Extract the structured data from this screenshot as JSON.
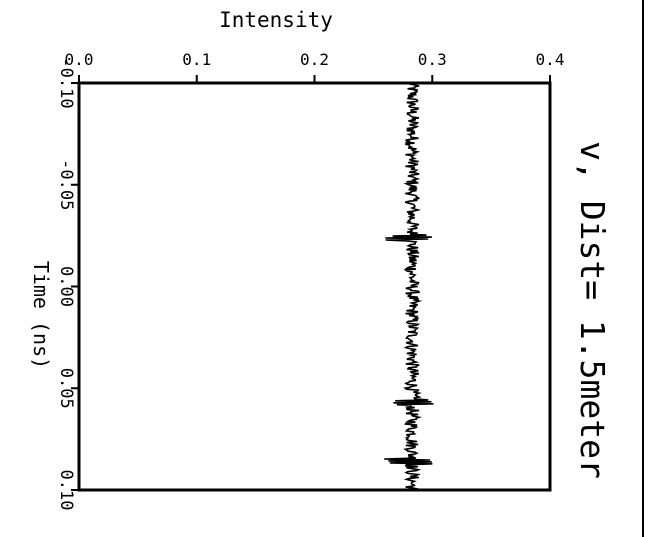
{
  "chart_data": {
    "type": "line",
    "title": "v, Dist= 1.5meter",
    "xlabel": "Intensity",
    "ylabel": "Time (ns)",
    "xlim": [
      0.0,
      0.4
    ],
    "ylim": [
      -0.1,
      0.1
    ],
    "x_ticks": [
      "0.0",
      "0.1",
      "0.2",
      "0.3",
      "0.4"
    ],
    "y_ticks": [
      "-0.10",
      "-0.05",
      "0.00",
      "0.05",
      "0.10"
    ],
    "y_tick_values": [
      -0.1,
      -0.05,
      0.0,
      0.05,
      0.1
    ],
    "x_tick_values": [
      0.0,
      0.1,
      0.2,
      0.3,
      0.4
    ],
    "grid": false,
    "series": [
      {
        "time_range": [
          -0.1,
          0.1
        ],
        "mean_intensity": 0.283,
        "noise_amplitude": 0.006,
        "spike_times": [
          -0.024,
          0.057,
          0.086
        ],
        "spike_amplitude": 0.018
      }
    ]
  }
}
